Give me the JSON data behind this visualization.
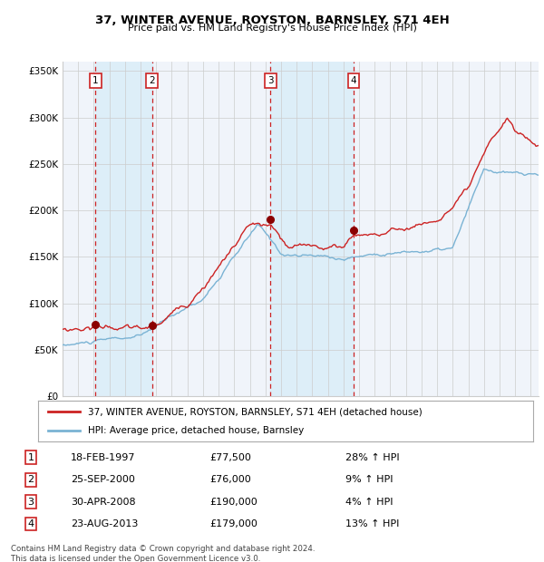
{
  "title": "37, WINTER AVENUE, ROYSTON, BARNSLEY, S71 4EH",
  "subtitle": "Price paid vs. HM Land Registry's House Price Index (HPI)",
  "legend_line1": "37, WINTER AVENUE, ROYSTON, BARNSLEY, S71 4EH (detached house)",
  "legend_line2": "HPI: Average price, detached house, Barnsley",
  "footer1": "Contains HM Land Registry data © Crown copyright and database right 2024.",
  "footer2": "This data is licensed under the Open Government Licence v3.0.",
  "transactions": [
    {
      "num": 1,
      "date": "18-FEB-1997",
      "price": 77500,
      "hpi_pct": "28% ↑ HPI",
      "year": 1997.12
    },
    {
      "num": 2,
      "date": "25-SEP-2000",
      "price": 76000,
      "hpi_pct": "9% ↑ HPI",
      "year": 2000.73
    },
    {
      "num": 3,
      "date": "30-APR-2008",
      "price": 190000,
      "hpi_pct": "4% ↑ HPI",
      "year": 2008.33
    },
    {
      "num": 4,
      "date": "23-AUG-2013",
      "price": 179000,
      "hpi_pct": "13% ↑ HPI",
      "year": 2013.64
    }
  ],
  "hpi_color": "#7ab3d4",
  "price_color": "#cc2222",
  "dot_color": "#8b0000",
  "vline_color": "#cc2222",
  "shade_color": "#ddeef8",
  "grid_color": "#cccccc",
  "bg_color": "#f0f4fa",
  "ylim": [
    0,
    360000
  ],
  "xlim_start": 1995,
  "xlim_end": 2025.5,
  "yticks": [
    0,
    50000,
    100000,
    150000,
    200000,
    250000,
    300000,
    350000
  ],
  "ytick_labels": [
    "£0",
    "£50K",
    "£100K",
    "£150K",
    "£200K",
    "£250K",
    "£300K",
    "£350K"
  ],
  "xticks": [
    1995,
    1996,
    1997,
    1998,
    1999,
    2000,
    2001,
    2002,
    2003,
    2004,
    2005,
    2006,
    2007,
    2008,
    2009,
    2010,
    2011,
    2012,
    2013,
    2014,
    2015,
    2016,
    2017,
    2018,
    2019,
    2020,
    2021,
    2022,
    2023,
    2024,
    2025
  ]
}
